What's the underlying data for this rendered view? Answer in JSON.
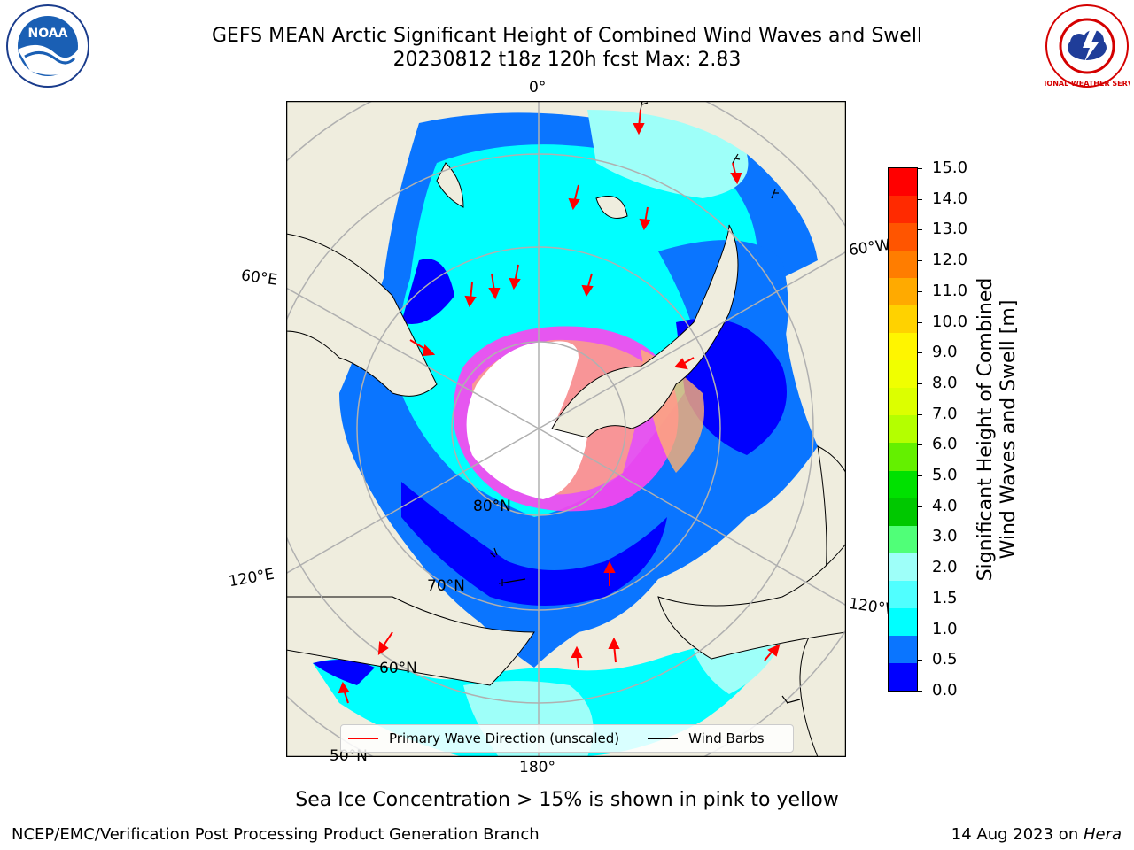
{
  "title": {
    "line1": "GEFS MEAN Arctic Significant Height of Combined Wind Waves and Swell",
    "line2": "20230812 t18z 120h fcst   Max: 2.83"
  },
  "logos": {
    "left": {
      "icon": "noaa-logo",
      "text": "NOAA"
    },
    "right": {
      "icon": "national-weather-service-logo",
      "text": "NATIONAL WEATHER SERVICE"
    }
  },
  "map": {
    "longitude_labels": {
      "top": "0°",
      "left_upper": "60°E",
      "left_lower": "120°E",
      "right_upper": "60°W",
      "right_lower": "120°W",
      "bottom": "180°"
    },
    "latitude_labels": {
      "lat80": "80°N",
      "lat70": "70°N",
      "lat60": "60°N",
      "lat50": "50°N"
    },
    "colors": {
      "land": "#efedde",
      "ocean_low": "#0000ff",
      "ocean_mid": "#0a75ff",
      "ocean_cyan": "#00ffff",
      "ocean_light": "#9efff9",
      "ice_pink": "#ff44ee",
      "ice_orange": "#ffb070",
      "grid": "#b0b0b0"
    }
  },
  "legend": {
    "primary_wave": "Primary Wave Direction (unscaled)",
    "wind_barbs": "Wind Barbs",
    "primary_color": "#ff0000",
    "barb_color": "#000000"
  },
  "colorbar": {
    "label_line1": "Significant Height of Combined",
    "label_line2": "Wind Waves and Swell [m]",
    "ticks": [
      "15.0",
      "14.0",
      "13.0",
      "12.0",
      "11.0",
      "10.0",
      "9.0",
      "8.0",
      "7.0",
      "6.0",
      "5.0",
      "4.0",
      "3.0",
      "2.0",
      "1.5",
      "1.0",
      "0.5",
      "0.0"
    ],
    "colors_top_to_bottom": [
      "#ff0000",
      "#ff2a00",
      "#ff5500",
      "#ff7d00",
      "#ffaa00",
      "#ffd200",
      "#fff500",
      "#f0ff00",
      "#dcff00",
      "#b4ff00",
      "#64f000",
      "#00e100",
      "#00c800",
      "#50ff78",
      "#9efff9",
      "#50ffff",
      "#00ffff",
      "#0a75ff",
      "#0000ff"
    ]
  },
  "caption": "Sea Ice Concentration > 15% is shown in pink to yellow",
  "footer": {
    "left": "NCEP/EMC/Verification Post Processing Product Generation Branch",
    "right_prefix": "14 Aug 2023 on ",
    "right_italic": "Hera"
  }
}
